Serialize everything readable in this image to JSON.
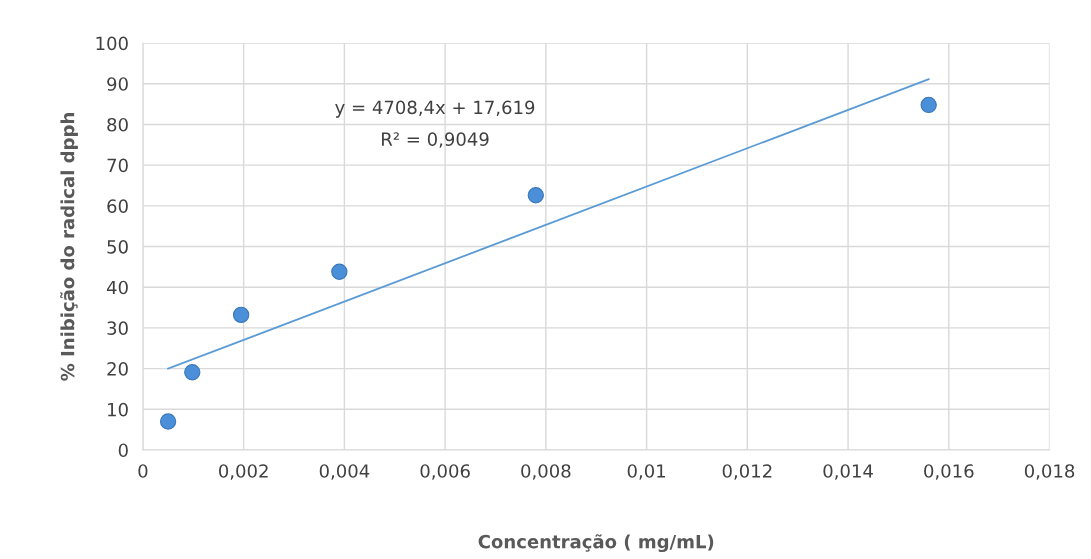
{
  "chart_data": {
    "type": "scatter",
    "xlabel": "Concentração ( mg/mL)",
    "ylabel": "% Inibição do radical dpph",
    "series": [
      {
        "type": "scatter",
        "color": "#4a8fd8",
        "marker": "circle",
        "x": [
          0.0005,
          0.00098,
          0.00195,
          0.0039,
          0.0078,
          0.0156
        ],
        "values": [
          7.0,
          19.1,
          33.2,
          43.8,
          62.6,
          84.8
        ]
      },
      {
        "type": "line",
        "color": "#5b9bd5",
        "marker": "none",
        "line_style": "solid",
        "x": [
          0.0005,
          0.0156
        ],
        "values": [
          20,
          91.1
        ]
      }
    ],
    "annotations": [
      "y = 4708,4x + 17,619",
      "R² = 0,9049"
    ],
    "xlim": [
      0,
      0.018
    ],
    "xticks": [
      0,
      {
        "value": 0.002,
        "label": "0,002"
      },
      {
        "value": 0.004,
        "label": "0,004"
      },
      {
        "value": 0.006,
        "label": "0,006"
      },
      {
        "value": 0.008,
        "label": "0,008"
      },
      {
        "value": 0.01,
        "label": "0,01"
      },
      {
        "value": 0.012,
        "label": "0,012"
      },
      {
        "value": 0.014,
        "label": "0,014"
      },
      {
        "value": 0.016,
        "label": "0,016"
      },
      {
        "value": 0.018,
        "label": "0,018"
      }
    ],
    "ylim": [
      0,
      100
    ],
    "yticks": [
      0,
      10,
      20,
      30,
      40,
      50,
      60,
      70,
      80,
      90,
      100
    ],
    "grid": true,
    "legend": false
  }
}
